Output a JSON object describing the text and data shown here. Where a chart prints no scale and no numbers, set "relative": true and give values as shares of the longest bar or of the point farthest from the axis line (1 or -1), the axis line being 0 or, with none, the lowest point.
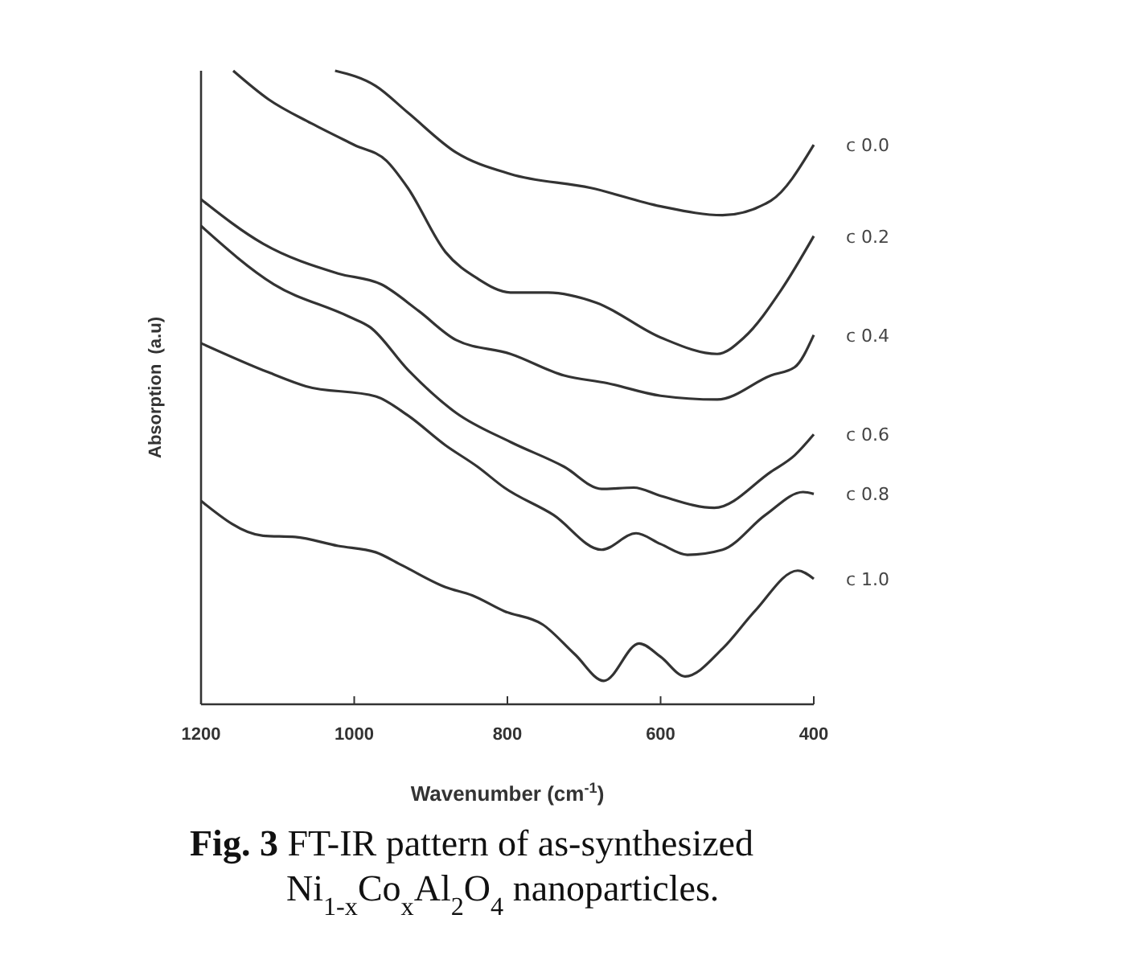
{
  "chart_data": {
    "type": "line",
    "title": "Fig. 3 FT-IR pattern of as-synthesized Ni$_{1-x}$Co$_{x}$Al$_{2}$O$_{4}$ nanoparticles.",
    "xlabel": "Wavenumber (cm$^{-1}$)",
    "ylabel": "Absorption  (a.u)",
    "relative": true,
    "xlim": [
      1200,
      400
    ],
    "xticks": [
      1200,
      1000,
      800,
      600,
      400
    ],
    "series": [
      {
        "name": "c 0.0",
        "color": "#333333",
        "x": [
          1025,
          972,
          930,
          867,
          796,
          691,
          600,
          519,
          456,
          400
        ],
        "values": [
          1.0,
          0.976,
          0.934,
          0.871,
          0.837,
          0.815,
          0.786,
          0.772,
          0.795,
          0.883
        ]
      },
      {
        "name": "c 0.2",
        "color": "#333333",
        "x": [
          1158,
          1112,
          1056,
          1000,
          958,
          930,
          881,
          839,
          796,
          747,
          684,
          600,
          526,
          491,
          442,
          400
        ],
        "values": [
          1.0,
          0.955,
          0.917,
          0.883,
          0.858,
          0.815,
          0.714,
          0.672,
          0.65,
          0.65,
          0.634,
          0.579,
          0.553,
          0.579,
          0.655,
          0.739
        ]
      },
      {
        "name": "c 0.4",
        "color": "#333333",
        "x": [
          1200,
          1119,
          1021,
          965,
          916,
          867,
          796,
          726,
          670,
          600,
          526,
          456,
          425,
          400
        ],
        "values": [
          0.797,
          0.727,
          0.68,
          0.663,
          0.621,
          0.575,
          0.553,
          0.519,
          0.507,
          0.487,
          0.481,
          0.519,
          0.532,
          0.583
        ]
      },
      {
        "name": "c 0.6",
        "color": "#333333",
        "x": [
          1200,
          1105,
          1007,
          979,
          930,
          867,
          796,
          726,
          677,
          635,
          600,
          530,
          456,
          425,
          400
        ],
        "values": [
          0.755,
          0.663,
          0.612,
          0.595,
          0.528,
          0.46,
          0.414,
          0.375,
          0.34,
          0.342,
          0.329,
          0.31,
          0.367,
          0.393,
          0.426
        ]
      },
      {
        "name": "c 0.8",
        "color": "#333333",
        "x": [
          1200,
          1112,
          1063,
          972,
          930,
          881,
          839,
          804,
          740,
          677,
          632,
          600,
          565,
          519,
          463,
          414,
          400
        ],
        "values": [
          0.57,
          0.524,
          0.502,
          0.486,
          0.456,
          0.409,
          0.375,
          0.342,
          0.299,
          0.244,
          0.27,
          0.253,
          0.236,
          0.244,
          0.299,
          0.335,
          0.332
        ]
      },
      {
        "name": "c 1.0",
        "color": "#333333",
        "x": [
          1200,
          1119,
          1077,
          1021,
          972,
          937,
          881,
          846,
          804,
          754,
          712,
          674,
          628,
          600,
          568,
          519,
          477,
          421,
          400
        ],
        "values": [
          0.321,
          0.266,
          0.264,
          0.25,
          0.24,
          0.219,
          0.185,
          0.172,
          0.147,
          0.126,
          0.079,
          0.037,
          0.096,
          0.075,
          0.044,
          0.088,
          0.147,
          0.211,
          0.198
        ]
      }
    ]
  }
}
